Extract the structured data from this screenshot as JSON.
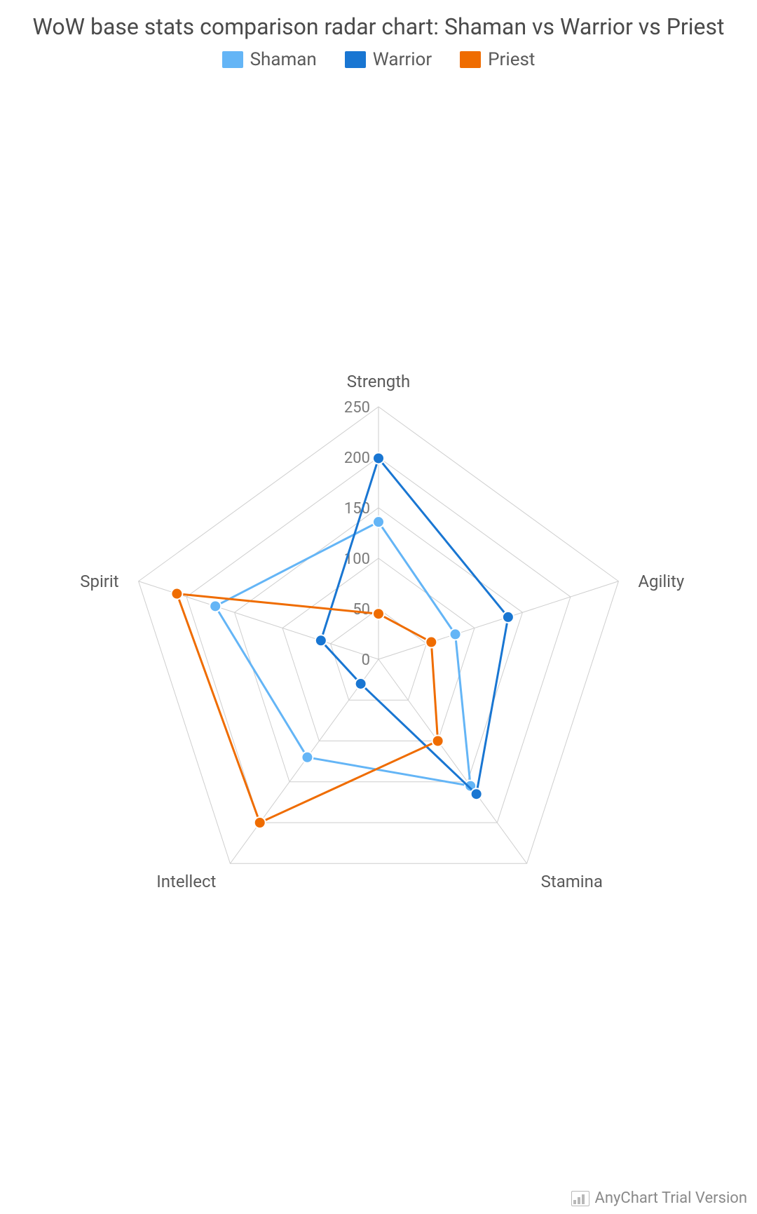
{
  "title": "WoW base stats comparison radar chart: Shaman vs Warrior vs Priest",
  "credit": "AnyChart Trial Version",
  "chart": {
    "type": "radar",
    "background_color": "#ffffff",
    "grid_color": "#cecece",
    "grid_stroke_width": 1,
    "axis_font_size": 24,
    "axis_font_color": "#5a5a5a",
    "tick_font_size": 22,
    "tick_font_color": "#7a7a7a",
    "title_font_size": 32,
    "legend_font_size": 26,
    "marker_radius": 8,
    "line_width": 3,
    "categories": [
      "Strength",
      "Agility",
      "Stamina",
      "Intellect",
      "Spirit"
    ],
    "rlim": [
      0,
      250
    ],
    "rtick_step": 50,
    "rtick_labels": [
      "0",
      "50",
      "100",
      "150",
      "200",
      "250"
    ],
    "series": [
      {
        "name": "Shaman",
        "color": "#64b5f6",
        "values": [
          136,
          80,
          155,
          120,
          170
        ]
      },
      {
        "name": "Warrior",
        "color": "#1976d2",
        "values": [
          199,
          135,
          165,
          30,
          60
        ]
      },
      {
        "name": "Priest",
        "color": "#ef6c00",
        "values": [
          45,
          55,
          100,
          200,
          210
        ]
      }
    ]
  }
}
